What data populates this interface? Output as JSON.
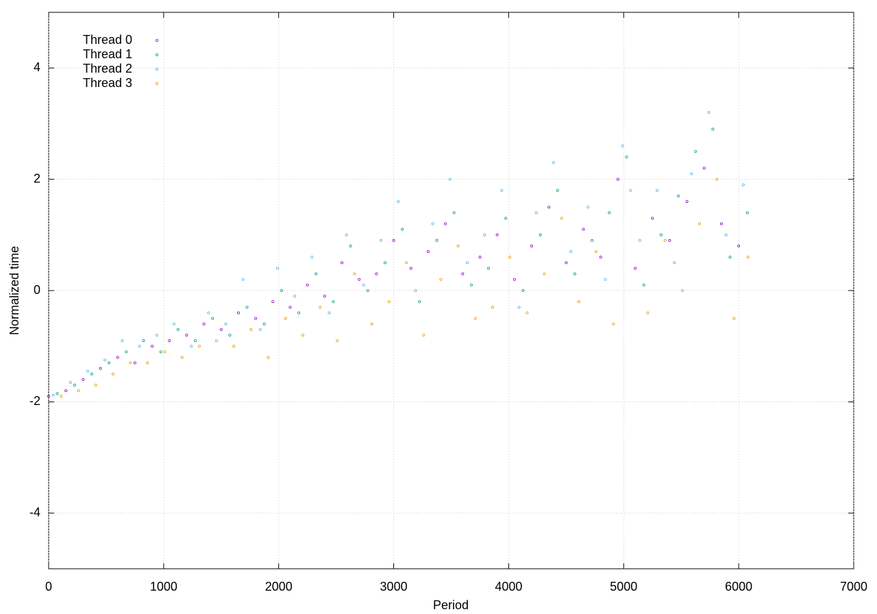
{
  "chart_data": {
    "type": "scatter",
    "x_label": "Period",
    "y_label": "Normalized time",
    "xlim": [
      0,
      7000
    ],
    "xticks": [
      0,
      1000,
      2000,
      3000,
      4000,
      5000,
      6000,
      7000
    ],
    "ylim": [
      -5,
      5
    ],
    "yticks": [
      -4,
      -2,
      0,
      2,
      4
    ],
    "grid": true,
    "legend": "top-left",
    "series": [
      {
        "name": "Thread 0",
        "color": "#9400d3",
        "x": [
          0,
          150,
          300,
          450,
          600,
          750,
          900,
          1050,
          1200,
          1350,
          1500,
          1650,
          1800,
          1950,
          2100,
          2250,
          2400,
          2550,
          2700,
          2850,
          3000,
          3150,
          3300,
          3450,
          3600,
          3750,
          3900,
          4050,
          4200,
          4350,
          4500,
          4650,
          4800,
          4950,
          5100,
          5250,
          5400,
          5550,
          5700,
          5850,
          6000
        ],
        "values": [
          -1.9,
          -1.8,
          -1.6,
          -1.4,
          -1.2,
          -1.3,
          -1.0,
          -0.9,
          -0.8,
          -0.6,
          -0.7,
          -0.4,
          -0.5,
          -0.2,
          -0.3,
          0.1,
          -0.1,
          0.5,
          0.2,
          0.3,
          0.9,
          0.4,
          0.7,
          1.2,
          0.3,
          0.6,
          1.0,
          0.2,
          0.8,
          1.5,
          0.5,
          1.1,
          0.6,
          2.0,
          0.4,
          1.3,
          0.9,
          1.6,
          2.2,
          1.2,
          0.8
        ]
      },
      {
        "name": "Thread 1",
        "color": "#009e73",
        "x": [
          75,
          225,
          375,
          525,
          675,
          825,
          975,
          1125,
          1275,
          1425,
          1575,
          1725,
          1875,
          2025,
          2175,
          2325,
          2475,
          2625,
          2775,
          2925,
          3075,
          3225,
          3375,
          3525,
          3675,
          3825,
          3975,
          4125,
          4275,
          4425,
          4575,
          4725,
          4875,
          5025,
          5175,
          5325,
          5475,
          5625,
          5775,
          5925,
          6075
        ],
        "values": [
          -1.85,
          -1.7,
          -1.5,
          -1.3,
          -1.1,
          -0.9,
          -1.1,
          -0.7,
          -0.9,
          -0.5,
          -0.8,
          -0.3,
          -0.6,
          0.0,
          -0.4,
          0.3,
          -0.2,
          0.8,
          0.0,
          0.5,
          1.1,
          -0.2,
          0.9,
          1.4,
          0.1,
          0.4,
          1.3,
          0.0,
          1.0,
          1.8,
          0.3,
          0.9,
          1.4,
          2.4,
          0.1,
          1.0,
          1.7,
          2.5,
          2.9,
          0.6,
          1.4
        ]
      },
      {
        "name": "Thread 2",
        "color": "#56b4e9",
        "x": [
          40,
          190,
          340,
          490,
          640,
          790,
          940,
          1090,
          1240,
          1390,
          1540,
          1690,
          1840,
          1990,
          2140,
          2290,
          2440,
          2590,
          2740,
          2890,
          3040,
          3190,
          3340,
          3490,
          3640,
          3790,
          3940,
          4090,
          4240,
          4390,
          4540,
          4690,
          4840,
          4990,
          5140,
          5290,
          5440,
          5590,
          5740,
          5890,
          6040
        ],
        "values": [
          -1.88,
          -1.65,
          -1.45,
          -1.25,
          -0.9,
          -1.0,
          -0.8,
          -0.6,
          -1.0,
          -0.4,
          -0.6,
          0.2,
          -0.7,
          0.4,
          -0.1,
          0.6,
          -0.4,
          1.0,
          0.1,
          0.9,
          1.6,
          0.0,
          1.2,
          2.0,
          0.5,
          1.0,
          1.8,
          -0.3,
          1.4,
          2.3,
          0.7,
          1.5,
          0.2,
          2.6,
          0.9,
          1.8,
          0.5,
          2.1,
          3.2,
          1.0,
          1.9
        ]
      },
      {
        "name": "Thread 3",
        "color": "#e69f00",
        "x": [
          110,
          260,
          410,
          560,
          710,
          860,
          1010,
          1160,
          1310,
          1460,
          1610,
          1760,
          1910,
          2060,
          2210,
          2360,
          2510,
          2660,
          2810,
          2960,
          3110,
          3260,
          3410,
          3560,
          3710,
          3860,
          4010,
          4160,
          4310,
          4460,
          4610,
          4760,
          4910,
          5060,
          5210,
          5360,
          5510,
          5660,
          5810,
          5960,
          6080
        ],
        "values": [
          -1.9,
          -1.8,
          -1.7,
          -1.5,
          -1.3,
          -1.3,
          -1.1,
          -1.2,
          -1.0,
          -0.9,
          -1.0,
          -0.7,
          -1.2,
          -0.5,
          -0.8,
          -0.3,
          -0.9,
          0.3,
          -0.6,
          -0.2,
          0.5,
          -0.8,
          0.2,
          0.8,
          -0.5,
          -0.3,
          0.6,
          -0.4,
          0.3,
          1.3,
          -0.2,
          0.7,
          -0.6,
          1.8,
          -0.4,
          0.9,
          0.0,
          1.2,
          2.0,
          -0.5,
          0.6
        ]
      }
    ]
  }
}
